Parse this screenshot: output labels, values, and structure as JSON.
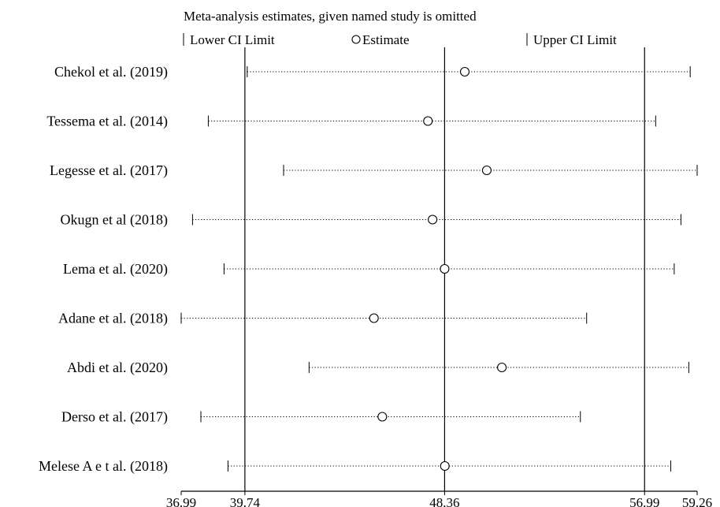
{
  "chart_data": {
    "type": "scatter",
    "title": "Meta-analysis estimates, given named study is omitted",
    "legend": {
      "placement": "top",
      "items": [
        {
          "symbol": "|",
          "label": "Lower CI Limit"
        },
        {
          "symbol": "○",
          "label": "Estimate"
        },
        {
          "symbol": "|",
          "label": "Upper CI Limit"
        }
      ]
    },
    "xlim": [
      36.99,
      59.26
    ],
    "x_ticks": [
      36.99,
      39.74,
      48.36,
      56.99,
      59.26
    ],
    "x_tick_labels": [
      "36.99",
      "39.74",
      "48.36",
      "56.99",
      "59.26"
    ],
    "reference_lines": [
      39.74,
      48.36,
      56.99
    ],
    "grid": false,
    "studies": [
      {
        "name": "Chekol et al. (2019)",
        "lower": 39.84,
        "estimate": 49.23,
        "upper": 58.96
      },
      {
        "name": "Tessema et al. (2014)",
        "lower": 38.16,
        "estimate": 47.64,
        "upper": 57.47
      },
      {
        "name": "Legesse et al. (2017)",
        "lower": 41.41,
        "estimate": 50.18,
        "upper": 59.26
      },
      {
        "name": "Okugn et al (2018)",
        "lower": 37.48,
        "estimate": 47.84,
        "upper": 58.56
      },
      {
        "name": "Lema et al. (2020)",
        "lower": 38.84,
        "estimate": 48.36,
        "upper": 58.27
      },
      {
        "name": "Adane et al. (2018)",
        "lower": 36.99,
        "estimate": 45.31,
        "upper": 54.49
      },
      {
        "name": "Abdi et al. (2020)",
        "lower": 42.51,
        "estimate": 50.83,
        "upper": 58.9
      },
      {
        "name": "Derso et al. (2017)",
        "lower": 37.84,
        "estimate": 45.67,
        "upper": 54.22
      },
      {
        "name": "Melese A e t al. (2018)",
        "lower": 39.01,
        "estimate": 48.37,
        "upper": 58.12
      }
    ]
  }
}
